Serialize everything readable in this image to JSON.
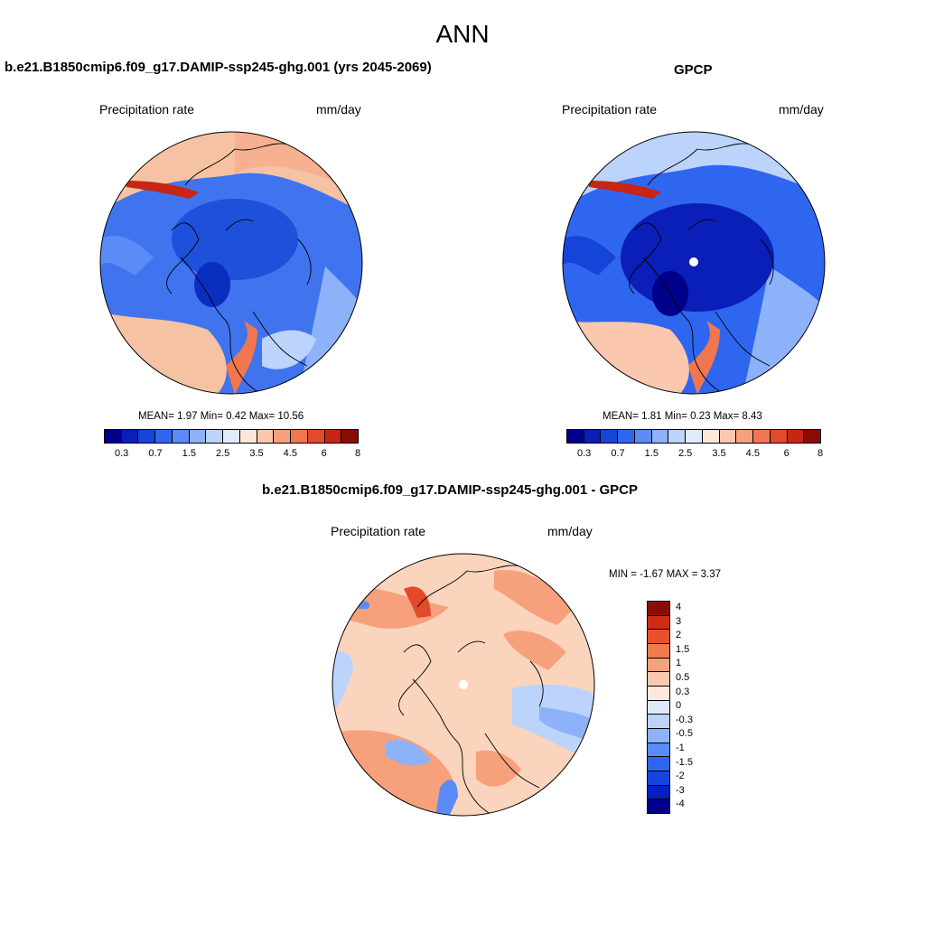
{
  "title": "ANN",
  "panels": {
    "model": {
      "title": "b.e21.B1850cmip6.f09_g17.DAMIP-ssp245-ghg.001 (yrs 2045-2069)",
      "var_label": "Precipitation rate",
      "units": "mm/day",
      "stats": "MEAN=   1.97  Min=   0.42  Max=  10.56"
    },
    "obs": {
      "title": "GPCP",
      "var_label": "Precipitation rate",
      "units": "mm/day",
      "stats": "MEAN=   1.81  Min=   0.23  Max=   8.43"
    },
    "diff": {
      "title": "b.e21.B1850cmip6.f09_g17.DAMIP-ssp245-ghg.001 - GPCP",
      "var_label": "Precipitation rate",
      "units": "mm/day",
      "stats": "MIN =  -1.67 MAX =   3.37"
    }
  },
  "colorbar_main": {
    "colors": [
      "#00008a",
      "#0a1fb8",
      "#1545d8",
      "#2f66f0",
      "#5a8bf7",
      "#8db2fa",
      "#bcd3fb",
      "#e0ebfc",
      "#fde7d8",
      "#fbc8ae",
      "#f7a07c",
      "#f07650",
      "#e24a2a",
      "#c62613",
      "#8a0d05"
    ],
    "tick_labels": [
      "0.3",
      "0.7",
      "1.5",
      "2.5",
      "3.5",
      "4.5",
      "6",
      "8"
    ]
  },
  "colorbar_diff": {
    "colors": [
      "#00008a",
      "#0520c0",
      "#1545e0",
      "#2f66f0",
      "#5a8bf7",
      "#8db2fa",
      "#bcd3fb",
      "#dde9fb",
      "#fde9dc",
      "#fbc8ae",
      "#f7a07c",
      "#f47a4e",
      "#e9502c",
      "#cf2c14",
      "#8a0d05"
    ],
    "tick_labels": [
      "-4",
      "-3",
      "-2",
      "-1.5",
      "-1",
      "-0.5",
      "-0.3",
      "0",
      "0.3",
      "0.5",
      "1",
      "1.5",
      "2",
      "3",
      "4"
    ]
  }
}
